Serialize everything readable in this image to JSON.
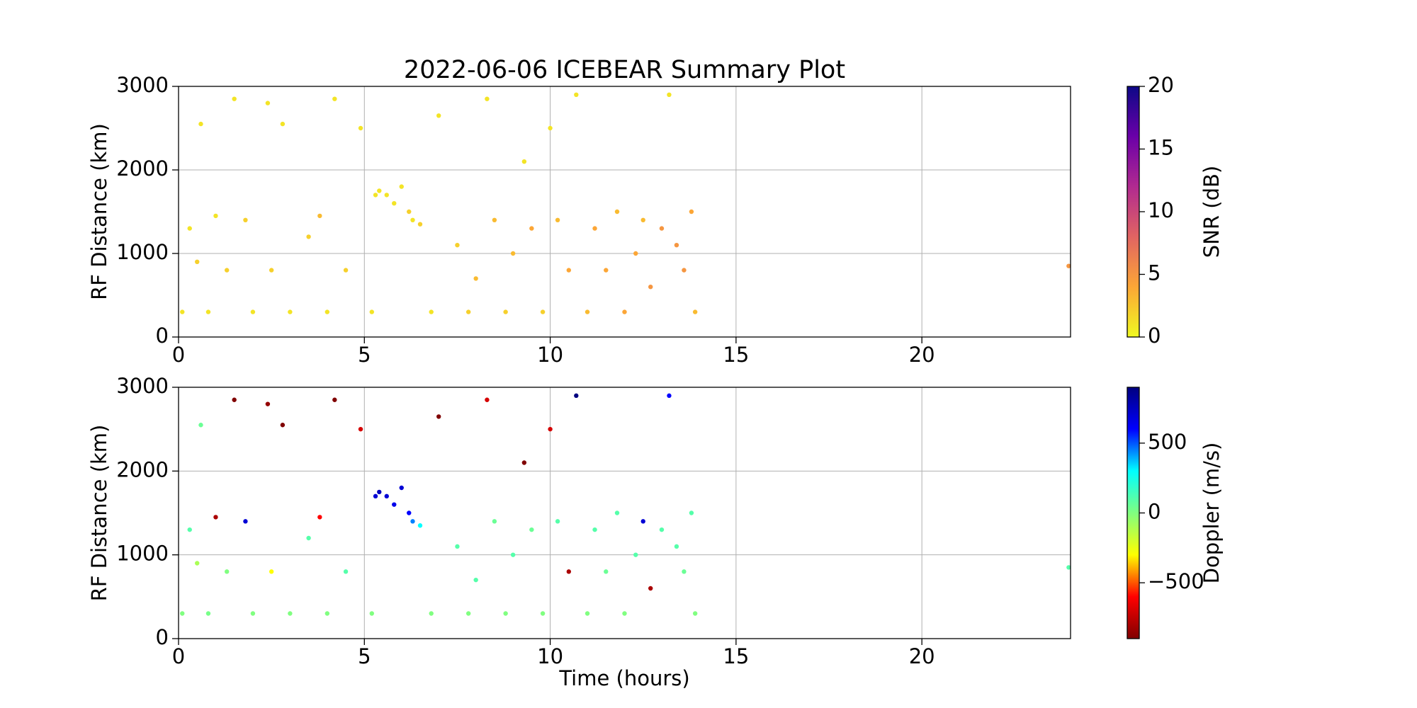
{
  "chart_data": [
    {
      "type": "scatter",
      "title": "2022-06-06 ICEBEAR Summary Plot",
      "ylabel": "RF Distance (km)",
      "xlim": [
        0,
        24
      ],
      "xticks": [
        0,
        5,
        10,
        15,
        20
      ],
      "ylim": [
        0,
        3000
      ],
      "yticks": [
        0,
        1000,
        2000,
        3000
      ],
      "grid": true,
      "colorbar_label": "SNR (dB)",
      "clim": [
        0,
        20
      ],
      "cticks": [
        0,
        5,
        10,
        15,
        20
      ],
      "colormap": [
        "#f0f921",
        "#fca636",
        "#e16462",
        "#b12a90",
        "#6a00a8",
        "#0d0887"
      ],
      "series": [
        {
          "name": "SNR",
          "x": [
            0.1,
            0.3,
            0.5,
            0.6,
            0.8,
            1.0,
            1.3,
            1.5,
            1.8,
            2.0,
            2.4,
            2.5,
            2.8,
            3.0,
            3.5,
            3.8,
            4.0,
            4.2,
            4.5,
            4.9,
            5.2,
            5.3,
            5.4,
            5.6,
            5.8,
            6.0,
            6.2,
            6.3,
            6.5,
            6.8,
            7.0,
            7.5,
            7.8,
            8.0,
            8.3,
            8.5,
            8.8,
            9.0,
            9.3,
            9.5,
            9.8,
            10.0,
            10.2,
            10.5,
            10.7,
            11.0,
            11.2,
            11.5,
            11.8,
            12.0,
            12.3,
            12.5,
            12.7,
            13.0,
            13.2,
            13.4,
            13.6,
            13.8,
            13.9,
            23.95
          ],
          "y": [
            300,
            1300,
            900,
            2550,
            300,
            1450,
            800,
            2850,
            1400,
            300,
            2800,
            800,
            2550,
            300,
            1200,
            1450,
            300,
            2850,
            800,
            2500,
            300,
            1700,
            1750,
            1700,
            1600,
            1800,
            1500,
            1400,
            1350,
            300,
            2650,
            1100,
            300,
            700,
            2850,
            1400,
            300,
            1000,
            2100,
            1300,
            300,
            2500,
            1400,
            800,
            2900,
            300,
            1300,
            800,
            1500,
            300,
            1000,
            1400,
            600,
            1300,
            2900,
            1100,
            800,
            1500,
            300,
            850
          ],
          "c": [
            1,
            1,
            2,
            1,
            1,
            1,
            2,
            1,
            2,
            1,
            1,
            2,
            1,
            1,
            2,
            3,
            1,
            1,
            2,
            1,
            1,
            1,
            1,
            1,
            1,
            1,
            2,
            1,
            2,
            1,
            1,
            2,
            2,
            3,
            1,
            3,
            2,
            3,
            1,
            4,
            2,
            1,
            3,
            4,
            1,
            3,
            4,
            4,
            3,
            4,
            4,
            3,
            5,
            5,
            1,
            5,
            5,
            4,
            3,
            5
          ]
        }
      ]
    },
    {
      "type": "scatter",
      "ylabel": "RF Distance (km)",
      "xlabel": "Time (hours)",
      "xlim": [
        0,
        24
      ],
      "xticks": [
        0,
        5,
        10,
        15,
        20
      ],
      "ylim": [
        0,
        3000
      ],
      "yticks": [
        0,
        1000,
        2000,
        3000
      ],
      "grid": true,
      "colorbar_label": "Doppler (m/s)",
      "clim": [
        -900,
        900
      ],
      "cticks": [
        {
          "value": -500,
          "label": "−500"
        },
        0,
        500
      ],
      "colormap": [
        "#800000",
        "#ff0000",
        "#ffff00",
        "#80ff80",
        "#00ffff",
        "#0000ff",
        "#000080"
      ],
      "series": [
        {
          "name": "Doppler",
          "x": [
            0.1,
            0.3,
            0.5,
            0.6,
            0.8,
            1.0,
            1.3,
            1.5,
            1.8,
            2.0,
            2.4,
            2.5,
            2.8,
            3.0,
            3.5,
            3.8,
            4.0,
            4.2,
            4.5,
            4.9,
            5.2,
            5.3,
            5.4,
            5.6,
            5.8,
            6.0,
            6.2,
            6.3,
            6.5,
            6.8,
            7.0,
            7.5,
            7.8,
            8.0,
            8.3,
            8.5,
            8.8,
            9.0,
            9.3,
            9.5,
            9.8,
            10.0,
            10.2,
            10.5,
            10.7,
            11.0,
            11.2,
            11.5,
            11.8,
            12.0,
            12.3,
            12.5,
            12.7,
            13.0,
            13.2,
            13.4,
            13.6,
            13.8,
            13.9,
            23.95
          ],
          "y": [
            300,
            1300,
            900,
            2550,
            300,
            1450,
            800,
            2850,
            1400,
            300,
            2800,
            800,
            2550,
            300,
            1200,
            1450,
            300,
            2850,
            800,
            2500,
            300,
            1700,
            1750,
            1700,
            1600,
            1800,
            1500,
            1400,
            1350,
            300,
            2650,
            1100,
            300,
            700,
            2850,
            1400,
            300,
            1000,
            2100,
            1300,
            300,
            2500,
            1400,
            800,
            2900,
            300,
            1300,
            800,
            1500,
            300,
            1000,
            1400,
            600,
            1300,
            2900,
            1100,
            800,
            1500,
            300,
            850
          ],
          "c": [
            0,
            100,
            -100,
            50,
            20,
            -800,
            0,
            -900,
            700,
            0,
            -850,
            -300,
            -900,
            0,
            100,
            -600,
            0,
            -900,
            100,
            -700,
            0,
            700,
            750,
            700,
            650,
            700,
            600,
            450,
            300,
            0,
            -900,
            100,
            0,
            100,
            -700,
            50,
            0,
            100,
            -900,
            50,
            0,
            -700,
            100,
            -800,
            900,
            0,
            100,
            50,
            100,
            0,
            100,
            700,
            -800,
            100,
            600,
            100,
            50,
            100,
            0,
            100
          ]
        }
      ]
    }
  ]
}
